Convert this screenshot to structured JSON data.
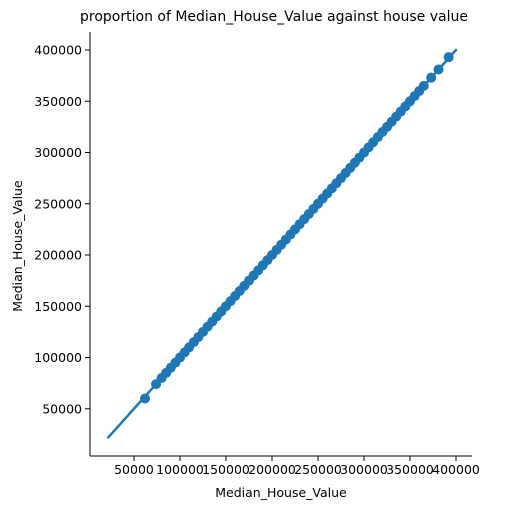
{
  "chart_data": {
    "type": "scatter",
    "title": "proportion of Median_House_Value against house value",
    "xlabel": "Median_House_Value",
    "ylabel": "Median_House_Value",
    "xlim": [
      0,
      420000
    ],
    "ylim": [
      0,
      420000
    ],
    "x_ticks": [
      50000,
      100000,
      150000,
      200000,
      250000,
      300000,
      350000,
      400000
    ],
    "y_ticks": [
      50000,
      100000,
      150000,
      200000,
      250000,
      300000,
      350000,
      400000
    ],
    "x_tick_labels": [
      "50000",
      "100000",
      "150000",
      "200000",
      "250000",
      "300000",
      "350000",
      "400000"
    ],
    "y_tick_labels": [
      "50000",
      "100000",
      "150000",
      "200000",
      "250000",
      "300000",
      "350000",
      "400000"
    ],
    "grid": false,
    "color": "#1f77b4",
    "points": {
      "x": [
        62000,
        74000,
        80000,
        85000,
        90000,
        95000,
        100000,
        105000,
        110000,
        115000,
        120000,
        125000,
        130000,
        135000,
        140000,
        145000,
        150000,
        155000,
        160000,
        165000,
        170000,
        175000,
        180000,
        185000,
        190000,
        195000,
        200000,
        205000,
        210000,
        215000,
        220000,
        225000,
        230000,
        235000,
        240000,
        245000,
        250000,
        255000,
        260000,
        265000,
        270000,
        275000,
        280000,
        285000,
        290000,
        295000,
        300000,
        305000,
        310000,
        315000,
        320000,
        325000,
        330000,
        335000,
        340000,
        345000,
        350000,
        355000,
        360000,
        365000,
        373000,
        381000,
        392000
      ],
      "y": [
        60000,
        74000,
        80000,
        85000,
        90000,
        95000,
        100000,
        105000,
        110000,
        115000,
        120000,
        125000,
        130000,
        135000,
        140000,
        145000,
        150000,
        155000,
        160000,
        165000,
        170000,
        175000,
        180000,
        185000,
        190000,
        195000,
        200000,
        205000,
        210000,
        215000,
        220000,
        225000,
        230000,
        235000,
        240000,
        245000,
        250000,
        255000,
        260000,
        265000,
        270000,
        275000,
        280000,
        285000,
        290000,
        295000,
        300000,
        305000,
        310000,
        315000,
        320000,
        325000,
        330000,
        335000,
        340000,
        345000,
        350000,
        355000,
        360000,
        365000,
        373000,
        381000,
        393000
      ]
    },
    "fit_line": {
      "x": [
        22000,
        400000
      ],
      "y": [
        22000,
        400000
      ]
    }
  }
}
